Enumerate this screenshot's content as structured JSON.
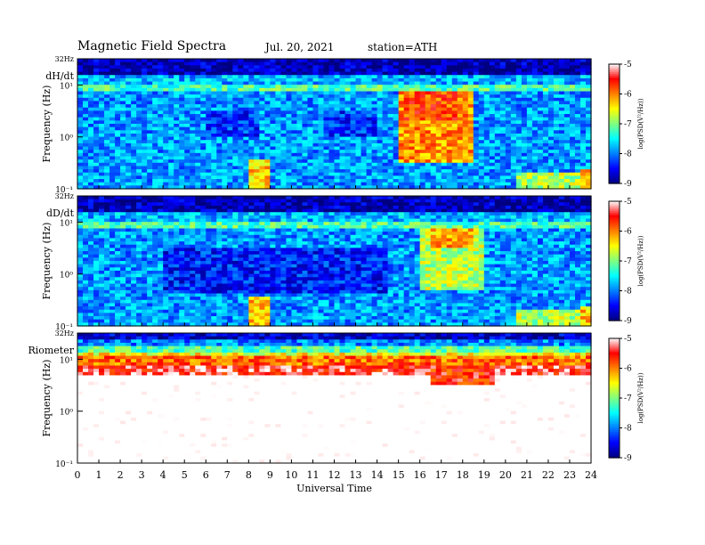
{
  "header": {
    "title": "Magnetic  Field  Spectra",
    "date": "Jul.  20, 2021",
    "station": "station=ATH"
  },
  "panels": [
    {
      "label": "dH/dt",
      "ylabel": "Frequency  (Hz)",
      "top_label": "32Hz",
      "ytick_labels": [
        "10¹",
        "10⁰",
        "10⁻¹"
      ],
      "cbar_label": "log(PSD(V²/Hz))",
      "cbar_ticks": [
        "-5",
        "-6",
        "-7",
        "-8",
        "-9"
      ]
    },
    {
      "label": "dD/dt",
      "ylabel": "Frequency  (Hz)",
      "top_label": "32Hz",
      "ytick_labels": [
        "10¹",
        "10⁰",
        "10⁻¹"
      ],
      "cbar_label": "log(PSD(V²/Hz))",
      "cbar_ticks": [
        "-5",
        "-6",
        "-7",
        "-8",
        "-9"
      ]
    },
    {
      "label": "Riometer",
      "ylabel": "Frequency  (Hz)",
      "top_label": "32Hz",
      "ytick_labels": [
        "10¹",
        "10⁰",
        "10⁻¹"
      ],
      "cbar_label": "log(PSD(V²/Hz))",
      "cbar_ticks": [
        "-5",
        "-6",
        "-7",
        "-8",
        "-9"
      ]
    }
  ],
  "xaxis": {
    "label": "Universal Time",
    "ticks": [
      "0",
      "1",
      "2",
      "3",
      "4",
      "5",
      "6",
      "7",
      "8",
      "9",
      "10",
      "11",
      "12",
      "13",
      "14",
      "15",
      "16",
      "17",
      "18",
      "19",
      "20",
      "21",
      "22",
      "23",
      "24"
    ]
  },
  "chart_data": [
    {
      "type": "heatmap",
      "title": "dH/dt",
      "xlabel": "Universal Time",
      "ylabel": "Frequency  (Hz)",
      "x_range_ut_hours": [
        0,
        24
      ],
      "y_range_hz": [
        0.1,
        32
      ],
      "y_scale": "log",
      "color_range_log_psd": [
        -9,
        -5
      ],
      "colormap": [
        "#00007f",
        "#0000ff",
        "#0080ff",
        "#00ffff",
        "#80ff80",
        "#ffff00",
        "#ff8000",
        "#ff0000",
        "#ffffff"
      ],
      "background_log_psd": -7.9,
      "bands": [
        {
          "f_hz": [
            16,
            32
          ],
          "log_psd": -8.8
        },
        {
          "f_hz": [
            10,
            16
          ],
          "log_psd": -7.8
        },
        {
          "f_hz": [
            8,
            10
          ],
          "log_psd": -7.2
        }
      ],
      "events": [
        {
          "ut_hours": [
            15.0,
            18.5
          ],
          "f_hz": [
            0.3,
            8
          ],
          "log_psd": -6.1
        },
        {
          "ut_hours": [
            15.3,
            17.8
          ],
          "f_hz": [
            2,
            8
          ],
          "log_psd": -5.8
        },
        {
          "ut_hours": [
            6.0,
            8.5
          ],
          "f_hz": [
            1,
            3
          ],
          "log_psd": -8.3
        },
        {
          "ut_hours": [
            11.5,
            14.0
          ],
          "f_hz": [
            1,
            3
          ],
          "log_psd": -8.3
        },
        {
          "ut_hours": [
            8.1,
            9.0
          ],
          "f_hz": [
            0.1,
            0.35
          ],
          "log_psd": -6.3
        },
        {
          "ut_hours": [
            20.5,
            23.5
          ],
          "f_hz": [
            0.1,
            0.2
          ],
          "log_psd": -6.8
        },
        {
          "ut_hours": [
            23.6,
            24.0
          ],
          "f_hz": [
            0.1,
            0.25
          ],
          "log_psd": -6.3
        }
      ]
    },
    {
      "type": "heatmap",
      "title": "dD/dt",
      "xlabel": "Universal Time",
      "ylabel": "Frequency  (Hz)",
      "x_range_ut_hours": [
        0,
        24
      ],
      "y_range_hz": [
        0.1,
        32
      ],
      "y_scale": "log",
      "color_range_log_psd": [
        -9,
        -5
      ],
      "colormap": [
        "#00007f",
        "#0000ff",
        "#0080ff",
        "#00ffff",
        "#80ff80",
        "#ffff00",
        "#ff8000",
        "#ff0000",
        "#ffffff"
      ],
      "background_log_psd": -7.9,
      "bands": [
        {
          "f_hz": [
            16,
            32
          ],
          "log_psd": -8.8
        },
        {
          "f_hz": [
            10,
            16
          ],
          "log_psd": -7.8
        },
        {
          "f_hz": [
            8,
            10
          ],
          "log_psd": -7.2
        }
      ],
      "events": [
        {
          "ut_hours": [
            16.0,
            19.0
          ],
          "f_hz": [
            0.5,
            8
          ],
          "log_psd": -6.8
        },
        {
          "ut_hours": [
            16.5,
            18.5
          ],
          "f_hz": [
            3,
            8
          ],
          "log_psd": -6.2
        },
        {
          "ut_hours": [
            4.0,
            14.5
          ],
          "f_hz": [
            0.4,
            3
          ],
          "log_psd": -8.4
        },
        {
          "ut_hours": [
            8.1,
            9.0
          ],
          "f_hz": [
            0.1,
            0.35
          ],
          "log_psd": -6.3
        },
        {
          "ut_hours": [
            20.5,
            23.5
          ],
          "f_hz": [
            0.1,
            0.2
          ],
          "log_psd": -6.8
        },
        {
          "ut_hours": [
            23.6,
            24.0
          ],
          "f_hz": [
            0.1,
            0.25
          ],
          "log_psd": -6.3
        }
      ]
    },
    {
      "type": "heatmap",
      "title": "Riometer",
      "xlabel": "Universal Time",
      "ylabel": "Frequency  (Hz)",
      "x_range_ut_hours": [
        0,
        24
      ],
      "y_range_hz": [
        0.1,
        32
      ],
      "y_scale": "log",
      "color_range_log_psd": [
        -9,
        -5
      ],
      "colormap": [
        "#00007f",
        "#0000ff",
        "#0080ff",
        "#00ffff",
        "#80ff80",
        "#ffff00",
        "#ff8000",
        "#ff0000",
        "#ffffff"
      ],
      "background_log_psd": -4.6,
      "bands": [
        {
          "f_hz": [
            24,
            32
          ],
          "log_psd": -8.7
        },
        {
          "f_hz": [
            18,
            24
          ],
          "log_psd": -8.0
        },
        {
          "f_hz": [
            14,
            18
          ],
          "log_psd": -7.2
        },
        {
          "f_hz": [
            11,
            14
          ],
          "log_psd": -6.5
        },
        {
          "f_hz": [
            8,
            11
          ],
          "log_psd": -5.9
        },
        {
          "f_hz": [
            5,
            8
          ],
          "log_psd": -5.4
        }
      ],
      "events": [
        {
          "ut_hours": [
            16.5,
            19.5
          ],
          "f_hz": [
            3,
            8
          ],
          "log_psd": -5.6
        }
      ]
    }
  ]
}
